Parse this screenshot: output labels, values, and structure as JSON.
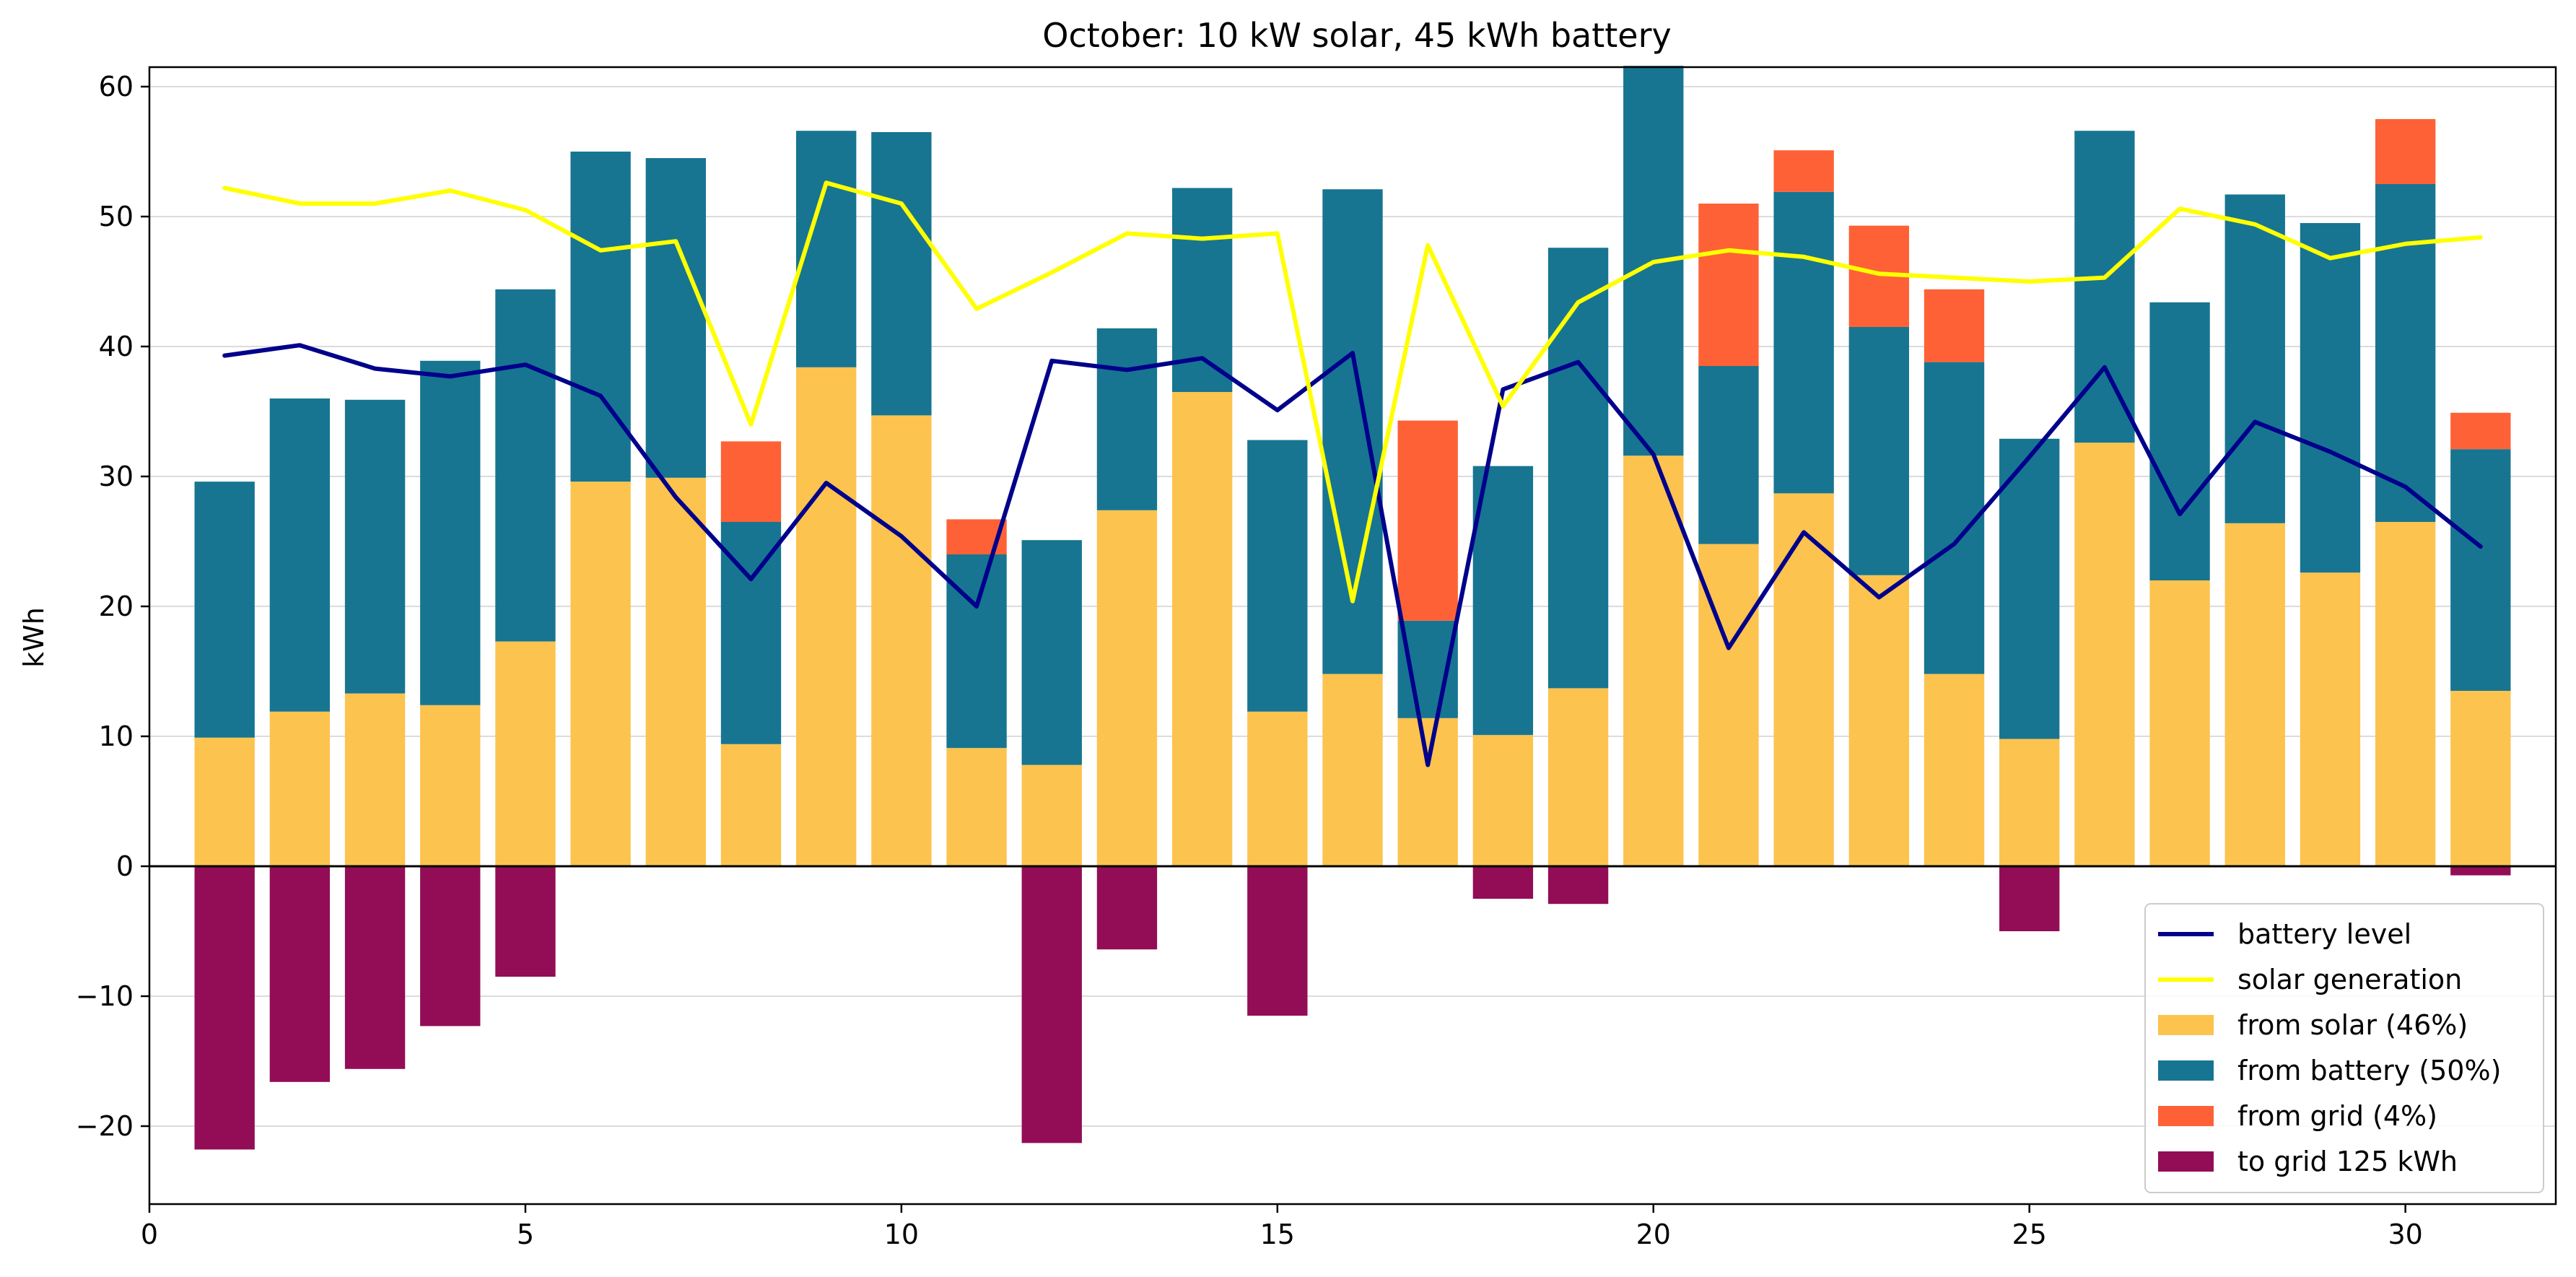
{
  "chart_data": {
    "type": "bar",
    "title": "October: 10 kW solar, 45 kWh battery",
    "xlabel": "",
    "ylabel": "kWh",
    "xlim": [
      0,
      32
    ],
    "ylim": [
      -26,
      61.5
    ],
    "x_ticks": [
      0,
      5,
      10,
      15,
      20,
      25,
      30
    ],
    "y_ticks": [
      -20,
      -10,
      0,
      10,
      20,
      30,
      40,
      50,
      60
    ],
    "grid": "horizontal",
    "legend_position": "lower-right",
    "days": [
      1,
      2,
      3,
      4,
      5,
      6,
      7,
      8,
      9,
      10,
      11,
      12,
      13,
      14,
      15,
      16,
      17,
      18,
      19,
      20,
      21,
      22,
      23,
      24,
      25,
      26,
      27,
      28,
      29,
      30,
      31
    ],
    "series": [
      {
        "name": "from solar (46%)",
        "kind": "bar",
        "color": "#fcc34f",
        "values": [
          9.9,
          11.9,
          13.3,
          12.4,
          17.3,
          29.6,
          29.9,
          9.4,
          38.4,
          34.7,
          9.1,
          7.8,
          27.4,
          36.5,
          11.9,
          14.8,
          11.4,
          10.1,
          13.7,
          31.6,
          24.8,
          28.7,
          22.4,
          14.8,
          9.8,
          32.6,
          22.0,
          26.4,
          22.6,
          26.5,
          13.5
        ]
      },
      {
        "name": "from battery (50%)",
        "kind": "bar",
        "color": "#177591",
        "values": [
          19.7,
          24.1,
          22.6,
          26.5,
          27.1,
          25.4,
          24.6,
          17.1,
          18.2,
          21.8,
          14.9,
          17.3,
          14.0,
          15.7,
          20.9,
          37.3,
          7.5,
          20.7,
          33.9,
          30.0,
          13.7,
          23.2,
          19.1,
          24.0,
          23.1,
          24.0,
          21.4,
          25.3,
          26.9,
          26.0,
          18.6
        ]
      },
      {
        "name": "from grid (4%)",
        "kind": "bar",
        "color": "#fe6136",
        "values": [
          0,
          0,
          0,
          0,
          0,
          0,
          0,
          6.2,
          0,
          0,
          2.7,
          0,
          0,
          0,
          0,
          0,
          15.4,
          0,
          0,
          0,
          12.5,
          3.2,
          7.8,
          5.6,
          0,
          0,
          0,
          0,
          0,
          5.0,
          2.8
        ]
      },
      {
        "name": "to grid 125 kWh",
        "kind": "bar",
        "color": "#930d56",
        "values": [
          -21.8,
          -16.6,
          -15.6,
          -12.3,
          -8.5,
          0,
          0,
          0,
          0,
          0,
          0,
          -21.3,
          -6.4,
          0,
          -11.5,
          0,
          0,
          -2.5,
          -2.9,
          0,
          0,
          0,
          0,
          0,
          -5.0,
          0,
          0,
          0,
          0,
          0,
          -0.7
        ]
      },
      {
        "name": "battery level",
        "kind": "line",
        "color": "#00008b",
        "values": [
          39.3,
          40.1,
          38.3,
          37.7,
          38.6,
          36.2,
          28.4,
          22.1,
          29.5,
          25.4,
          20.0,
          38.9,
          38.2,
          39.1,
          35.1,
          39.5,
          7.8,
          36.7,
          38.8,
          31.7,
          16.8,
          25.7,
          20.7,
          24.8,
          31.5,
          38.4,
          27.1,
          34.2,
          31.9,
          29.2,
          24.6
        ]
      },
      {
        "name": "solar generation",
        "kind": "line",
        "color": "#ffff00",
        "values": [
          52.2,
          51.0,
          51.0,
          52.0,
          50.5,
          47.4,
          48.1,
          34.0,
          52.6,
          51.0,
          42.9,
          45.7,
          48.7,
          48.3,
          48.7,
          20.4,
          47.8,
          35.4,
          43.4,
          46.5,
          47.4,
          46.9,
          45.6,
          45.3,
          45.0,
          45.3,
          50.6,
          49.4,
          46.8,
          47.9,
          48.4
        ]
      }
    ],
    "legend_order": [
      "battery level",
      "solar generation",
      "from solar (46%)",
      "from battery (50%)",
      "from grid (4%)",
      "to grid 125 kWh"
    ]
  }
}
